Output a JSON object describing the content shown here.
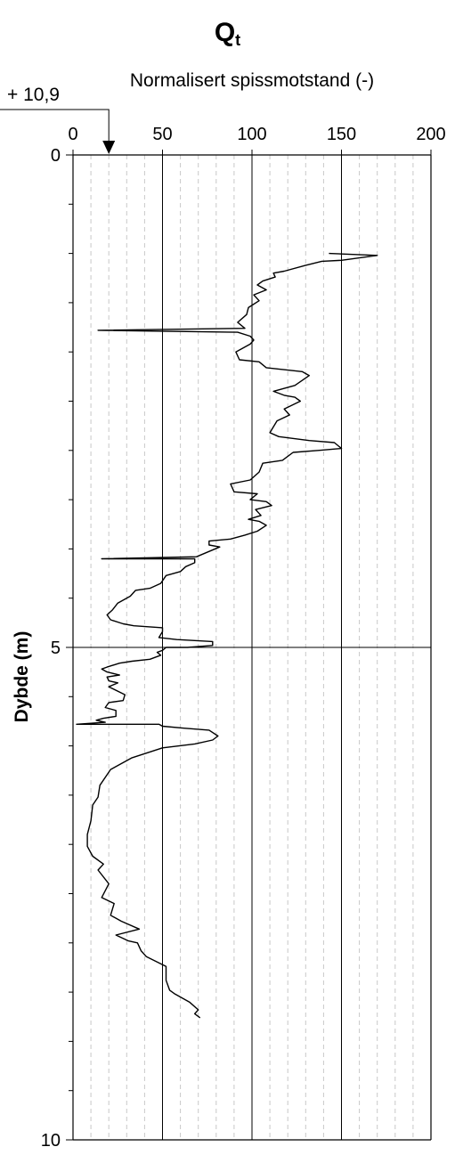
{
  "title_main": "Q",
  "title_sub": "t",
  "elevation_label": "+ 10,9",
  "chart_data": {
    "type": "line",
    "title": "Qt",
    "xlabel": "Normalisert spissmotstand (-)",
    "ylabel": "Dybde (m)",
    "xlim": [
      0,
      200
    ],
    "ylim": [
      10,
      0
    ],
    "y_inverted": true,
    "x_ticks": [
      "0",
      "50",
      "100",
      "150",
      "200"
    ],
    "y_ticks": [
      "0",
      "5",
      "10"
    ],
    "grid": {
      "major_x": true,
      "minor_x_dashed": true,
      "major_y_at": [
        5
      ]
    },
    "elevation_marker": {
      "label": "+ 10,9",
      "x": 20
    },
    "series": [
      {
        "points": [
          [
            143,
            1.0
          ],
          [
            170,
            1.02
          ],
          [
            150,
            1.07
          ],
          [
            139,
            1.08
          ],
          [
            130,
            1.12
          ],
          [
            118,
            1.18
          ],
          [
            112,
            1.2
          ],
          [
            113,
            1.24
          ],
          [
            106,
            1.28
          ],
          [
            103,
            1.32
          ],
          [
            108,
            1.37
          ],
          [
            101,
            1.42
          ],
          [
            104,
            1.48
          ],
          [
            98,
            1.55
          ],
          [
            97,
            1.62
          ],
          [
            92,
            1.7
          ],
          [
            96,
            1.76
          ],
          [
            14,
            1.78
          ],
          [
            92,
            1.8
          ],
          [
            99,
            1.84
          ],
          [
            101,
            1.88
          ],
          [
            99,
            1.92
          ],
          [
            91,
            2.0
          ],
          [
            93,
            2.08
          ],
          [
            104,
            2.1
          ],
          [
            108,
            2.16
          ],
          [
            128,
            2.2
          ],
          [
            132,
            2.24
          ],
          [
            124,
            2.34
          ],
          [
            112,
            2.4
          ],
          [
            118,
            2.44
          ],
          [
            124,
            2.46
          ],
          [
            127,
            2.5
          ],
          [
            118,
            2.58
          ],
          [
            121,
            2.64
          ],
          [
            114,
            2.7
          ],
          [
            110,
            2.82
          ],
          [
            115,
            2.86
          ],
          [
            132,
            2.9
          ],
          [
            146,
            2.92
          ],
          [
            150,
            2.98
          ],
          [
            137,
            3.0
          ],
          [
            123,
            3.02
          ],
          [
            117,
            3.1
          ],
          [
            106,
            3.13
          ],
          [
            104,
            3.22
          ],
          [
            99,
            3.3
          ],
          [
            88,
            3.34
          ],
          [
            90,
            3.42
          ],
          [
            103,
            3.44
          ],
          [
            99,
            3.5
          ],
          [
            108,
            3.52
          ],
          [
            111,
            3.56
          ],
          [
            102,
            3.6
          ],
          [
            105,
            3.66
          ],
          [
            98,
            3.7
          ],
          [
            104,
            3.72
          ],
          [
            108,
            3.76
          ],
          [
            103,
            3.82
          ],
          [
            96,
            3.86
          ],
          [
            88,
            3.9
          ],
          [
            76,
            3.92
          ],
          [
            76,
            3.96
          ],
          [
            82,
            3.98
          ],
          [
            69,
            4.08
          ],
          [
            16,
            4.1
          ],
          [
            68,
            4.1
          ],
          [
            68,
            4.14
          ],
          [
            63,
            4.18
          ],
          [
            60,
            4.23
          ],
          [
            52,
            4.27
          ],
          [
            49,
            4.35
          ],
          [
            43,
            4.4
          ],
          [
            35,
            4.42
          ],
          [
            32,
            4.48
          ],
          [
            25,
            4.55
          ],
          [
            22,
            4.62
          ],
          [
            19,
            4.67
          ],
          [
            21,
            4.72
          ],
          [
            28,
            4.76
          ],
          [
            34,
            4.78
          ],
          [
            50,
            4.8
          ],
          [
            50,
            4.84
          ],
          [
            48,
            4.9
          ],
          [
            58,
            4.92
          ],
          [
            78,
            4.94
          ],
          [
            78,
            4.98
          ],
          [
            64,
            5.0
          ],
          [
            52,
            5.0
          ],
          [
            50,
            5.03
          ],
          [
            47,
            5.05
          ],
          [
            49,
            5.08
          ],
          [
            43,
            5.12
          ],
          [
            33,
            5.14
          ],
          [
            26,
            5.16
          ],
          [
            19,
            5.2
          ],
          [
            16,
            5.22
          ],
          [
            19,
            5.25
          ],
          [
            26,
            5.28
          ],
          [
            19,
            5.3
          ],
          [
            20,
            5.34
          ],
          [
            25,
            5.36
          ],
          [
            20,
            5.4
          ],
          [
            29,
            5.48
          ],
          [
            28,
            5.54
          ],
          [
            20,
            5.56
          ],
          [
            18,
            5.61
          ],
          [
            24,
            5.64
          ],
          [
            24,
            5.7
          ],
          [
            17,
            5.72
          ],
          [
            13,
            5.74
          ],
          [
            18,
            5.76
          ],
          [
            2,
            5.78
          ],
          [
            48,
            5.78
          ],
          [
            50,
            5.8
          ],
          [
            62,
            5.82
          ],
          [
            76,
            5.84
          ],
          [
            81,
            5.9
          ],
          [
            78,
            5.94
          ],
          [
            68,
            5.98
          ],
          [
            50,
            6.02
          ],
          [
            33,
            6.12
          ],
          [
            21,
            6.24
          ],
          [
            15,
            6.4
          ],
          [
            14,
            6.52
          ],
          [
            11,
            6.6
          ],
          [
            10,
            6.76
          ],
          [
            8,
            6.9
          ],
          [
            8,
            7.02
          ],
          [
            11,
            7.12
          ],
          [
            17,
            7.2
          ],
          [
            14,
            7.26
          ],
          [
            20,
            7.4
          ],
          [
            16,
            7.54
          ],
          [
            23,
            7.6
          ],
          [
            21,
            7.72
          ],
          [
            27,
            7.78
          ],
          [
            37,
            7.86
          ],
          [
            24,
            7.92
          ],
          [
            31,
            7.98
          ],
          [
            36,
            8.0
          ],
          [
            38,
            8.08
          ],
          [
            41,
            8.14
          ],
          [
            52,
            8.24
          ],
          [
            52,
            8.38
          ],
          [
            54,
            8.48
          ],
          [
            57,
            8.52
          ],
          [
            65,
            8.6
          ],
          [
            70,
            8.68
          ],
          [
            68,
            8.72
          ],
          [
            71,
            8.76
          ]
        ]
      }
    ]
  }
}
